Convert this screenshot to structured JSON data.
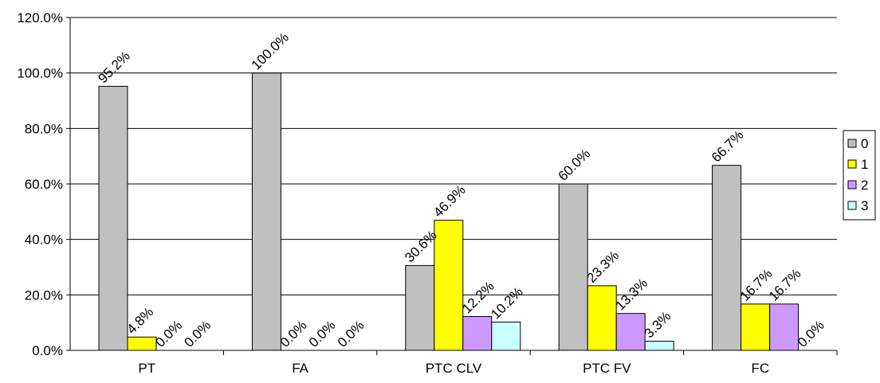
{
  "chart_data": {
    "type": "bar",
    "categories": [
      "PT",
      "FA",
      "PTC CLV",
      "PTC FV",
      "FC"
    ],
    "series": [
      {
        "name": "0",
        "color": "#c0c0c0",
        "values": [
          95.2,
          100.0,
          30.6,
          60.0,
          66.7
        ],
        "labels": [
          "95.2%",
          "100.0%",
          "30.6%",
          "60.0%",
          "66.7%"
        ]
      },
      {
        "name": "1",
        "color": "#ffff00",
        "values": [
          4.8,
          0.0,
          46.9,
          23.3,
          16.7
        ],
        "labels": [
          "4.8%",
          "0.0%",
          "46.9%",
          "23.3%",
          "16.7%"
        ]
      },
      {
        "name": "2",
        "color": "#cc99ff",
        "values": [
          0.0,
          0.0,
          12.2,
          13.3,
          16.7
        ],
        "labels": [
          "0.0%",
          "0.0%",
          "12.2%",
          "13.3%",
          "16.7%"
        ]
      },
      {
        "name": "3",
        "color": "#ccffff",
        "values": [
          0.0,
          0.0,
          10.2,
          3.3,
          0.0
        ],
        "labels": [
          "0.0%",
          "0.0%",
          "10.2%",
          "3.3%",
          "0.0%"
        ]
      }
    ],
    "yticks": [
      "0.0%",
      "20.0%",
      "40.0%",
      "60.0%",
      "80.0%",
      "100.0%",
      "120.0%"
    ],
    "ylim": [
      0,
      120
    ],
    "grid": true,
    "legend": "right"
  }
}
